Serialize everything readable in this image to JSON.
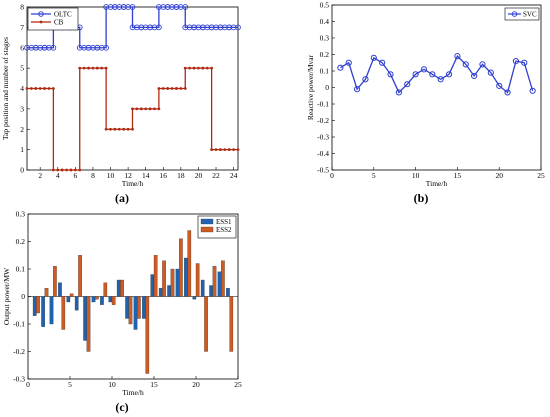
{
  "chart_data": [
    {
      "id": "a",
      "type": "line",
      "panel_label": "(a)",
      "xlabel": "Time/h",
      "ylabel": "Tap position and number of stages",
      "xlim": [
        0.5,
        24.5
      ],
      "ylim": [
        0,
        8
      ],
      "xticks": [
        2,
        4,
        6,
        8,
        10,
        12,
        14,
        16,
        18,
        20,
        22,
        24
      ],
      "yticks": [
        0,
        1,
        2,
        3,
        4,
        5,
        6,
        7,
        8
      ],
      "step": true,
      "legend_position": "top-left",
      "x": [
        1,
        2,
        3,
        4,
        5,
        6,
        7,
        8,
        9,
        10,
        11,
        12,
        13,
        14,
        15,
        16,
        17,
        18,
        19,
        20,
        21,
        22,
        23,
        24
      ],
      "series": [
        {
          "name": "OLTC",
          "color": "#2f3fd0",
          "marker": "circle",
          "values": [
            6,
            6,
            6,
            7,
            7,
            7,
            6,
            6,
            6,
            8,
            8,
            8,
            7,
            7,
            7,
            8,
            8,
            8,
            7,
            7,
            7,
            7,
            7,
            7
          ]
        },
        {
          "name": "CB",
          "color": "#b02a12",
          "marker": "dot",
          "values": [
            4,
            4,
            4,
            0,
            0,
            0,
            5,
            5,
            5,
            2,
            2,
            2,
            3,
            3,
            3,
            4,
            4,
            4,
            5,
            5,
            5,
            1,
            1,
            1
          ]
        }
      ]
    },
    {
      "id": "b",
      "type": "line",
      "panel_label": "(b)",
      "xlabel": "Time/h",
      "ylabel": "Reactive power/Mvar",
      "xlim": [
        0,
        25
      ],
      "ylim": [
        -0.5,
        0.5
      ],
      "xticks": [
        0,
        5,
        10,
        15,
        20,
        25
      ],
      "yticks": [
        -0.5,
        -0.4,
        -0.3,
        -0.2,
        -0.1,
        0,
        0.1,
        0.2,
        0.3,
        0.4,
        0.5
      ],
      "legend_position": "top-right",
      "x": [
        1,
        2,
        3,
        4,
        5,
        6,
        7,
        8,
        9,
        10,
        11,
        12,
        13,
        14,
        15,
        16,
        17,
        18,
        19,
        20,
        21,
        22,
        23,
        24
      ],
      "series": [
        {
          "name": "SVC",
          "color": "#2f3fd0",
          "marker": "circle",
          "values": [
            0.12,
            0.15,
            -0.01,
            0.05,
            0.18,
            0.15,
            0.08,
            -0.03,
            0.02,
            0.08,
            0.11,
            0.08,
            0.05,
            0.08,
            0.19,
            0.14,
            0.07,
            0.14,
            0.09,
            0.01,
            -0.03,
            0.16,
            0.15,
            -0.02
          ]
        }
      ]
    },
    {
      "id": "c",
      "type": "bar",
      "panel_label": "(c)",
      "xlabel": "Time/h",
      "ylabel": "Output power/MW",
      "xlim": [
        0,
        25
      ],
      "ylim": [
        -0.3,
        0.3
      ],
      "xticks": [
        0,
        5,
        10,
        15,
        20,
        25
      ],
      "yticks": [
        -0.3,
        -0.2,
        -0.1,
        0,
        0.1,
        0.2,
        0.3
      ],
      "legend_position": "top-right",
      "x": [
        1,
        2,
        3,
        4,
        5,
        6,
        7,
        8,
        9,
        10,
        11,
        12,
        13,
        14,
        15,
        16,
        17,
        18,
        19,
        20,
        21,
        22,
        23,
        24
      ],
      "series": [
        {
          "name": "ESS1",
          "color": "#1f63b0",
          "values": [
            -0.07,
            -0.11,
            -0.1,
            0.05,
            -0.02,
            -0.05,
            -0.16,
            -0.02,
            -0.03,
            -0.02,
            0.06,
            -0.08,
            -0.12,
            -0.08,
            0.08,
            0.03,
            0.04,
            0.1,
            0.14,
            -0.01,
            0.06,
            0.04,
            0.09,
            0.03
          ]
        },
        {
          "name": "ESS2",
          "color": "#cf5a22",
          "values": [
            -0.06,
            0.03,
            0.11,
            -0.12,
            0.01,
            0.15,
            -0.2,
            -0.01,
            0.05,
            -0.03,
            0.06,
            -0.1,
            -0.08,
            -0.28,
            0.15,
            0.13,
            0.1,
            0.21,
            0.24,
            0.12,
            -0.2,
            0.11,
            0.13,
            -0.2
          ]
        }
      ]
    }
  ]
}
